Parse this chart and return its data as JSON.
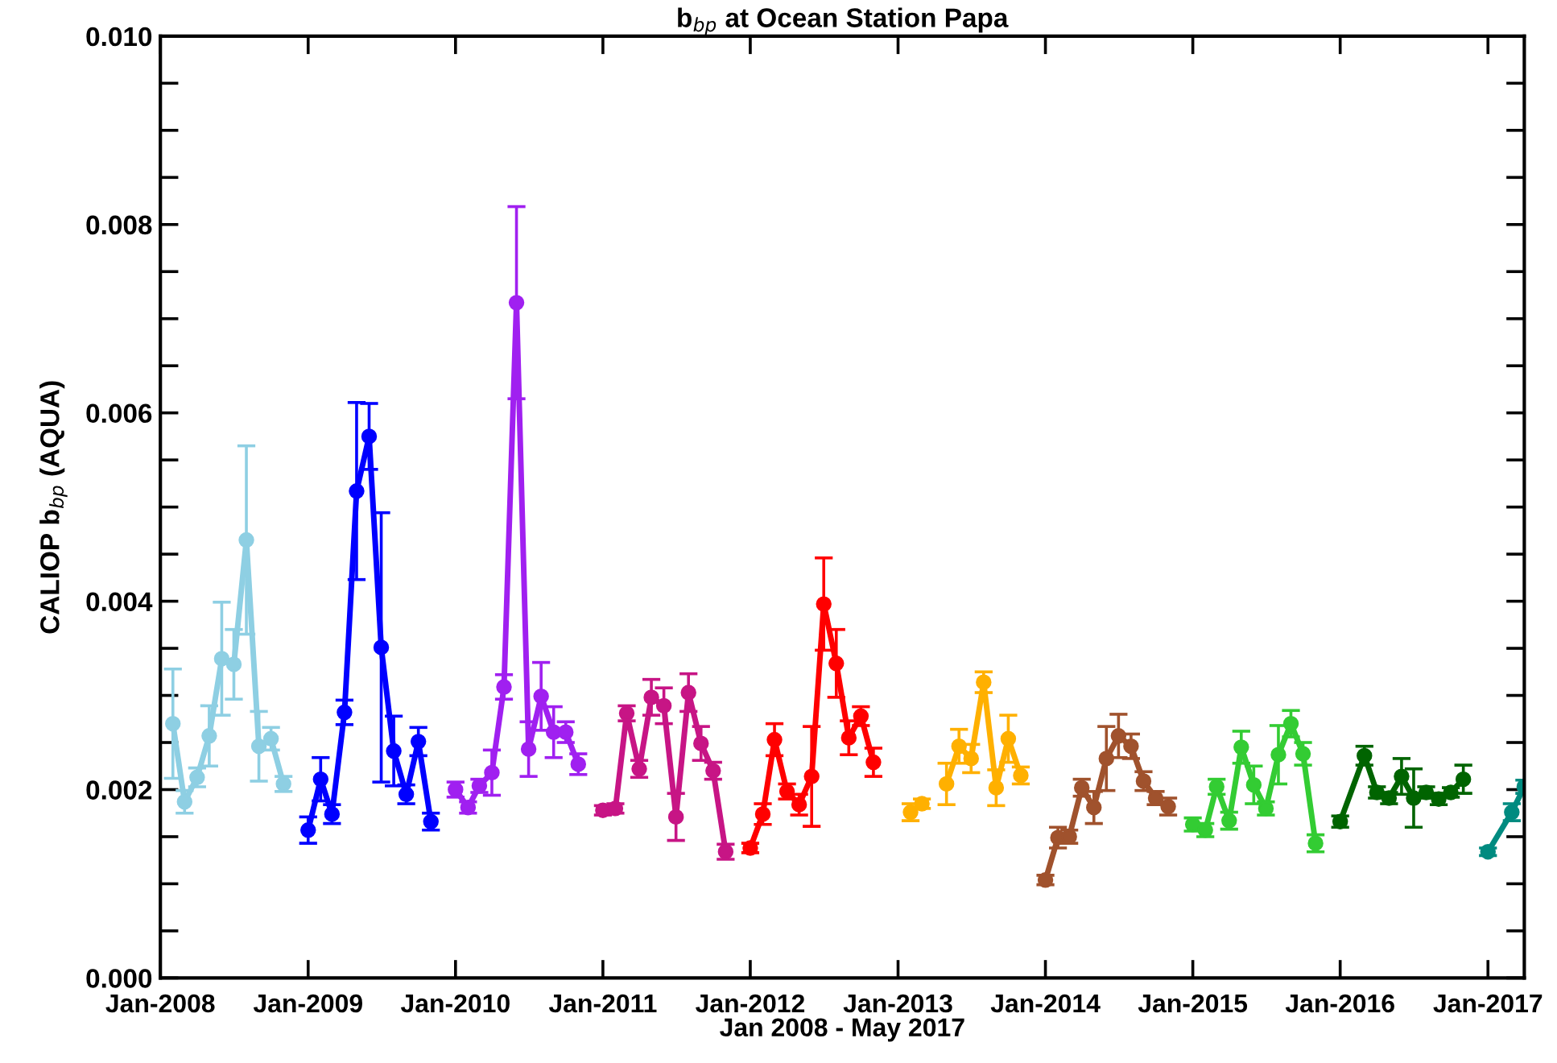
{
  "chart_data": {
    "type": "line",
    "title": "b$_{bp}$ at Ocean Station Papa",
    "xlabel": "Jan 2008 - May 2017",
    "ylabel": "CALIOP b$_{bp}$ (AQUA)",
    "marker": "circle",
    "line_style": "solid",
    "xlim": [
      "2008-01",
      "2017-04"
    ],
    "xticks": [
      {
        "value": "2008-01",
        "label": "Jan-2008"
      },
      {
        "value": "2009-01",
        "label": "Jan-2009"
      },
      {
        "value": "2010-01",
        "label": "Jan-2010"
      },
      {
        "value": "2011-01",
        "label": "Jan-2011"
      },
      {
        "value": "2012-01",
        "label": "Jan-2012"
      },
      {
        "value": "2013-01",
        "label": "Jan-2013"
      },
      {
        "value": "2014-01",
        "label": "Jan-2014"
      },
      {
        "value": "2015-01",
        "label": "Jan-2015"
      },
      {
        "value": "2016-01",
        "label": "Jan-2016"
      },
      {
        "value": "2017-01",
        "label": "Jan-2017"
      }
    ],
    "ylim": [
      0,
      0.01
    ],
    "yticks": [
      {
        "value": 0,
        "label": "0.000"
      },
      {
        "value": 0.0005,
        "label": null
      },
      {
        "value": 0.001,
        "label": null
      },
      {
        "value": 0.0015,
        "label": null
      },
      {
        "value": 0.002,
        "label": "0.002"
      },
      {
        "value": 0.0025,
        "label": null
      },
      {
        "value": 0.003,
        "label": null
      },
      {
        "value": 0.0035,
        "label": null
      },
      {
        "value": 0.004,
        "label": "0.004"
      },
      {
        "value": 0.0045,
        "label": null
      },
      {
        "value": 0.005,
        "label": null
      },
      {
        "value": 0.0055,
        "label": null
      },
      {
        "value": 0.006,
        "label": "0.006"
      },
      {
        "value": 0.0065,
        "label": null
      },
      {
        "value": 0.007,
        "label": null
      },
      {
        "value": 0.0075,
        "label": null
      },
      {
        "value": 0.008,
        "label": "0.008"
      },
      {
        "value": 0.0085,
        "label": null
      },
      {
        "value": 0.009,
        "label": null
      },
      {
        "value": 0.0095,
        "label": null
      },
      {
        "value": 0.01,
        "label": "0.010"
      }
    ],
    "series": [
      {
        "color": "#8ecfe3",
        "x": [
          "2008-02",
          "2008-03",
          "2008-04",
          "2008-05",
          "2008-06",
          "2008-07",
          "2008-08",
          "2008-09",
          "2008-10",
          "2008-11"
        ],
        "values": [
          0.0027,
          0.00187,
          0.00213,
          0.00257,
          0.00339,
          0.00333,
          0.00465,
          0.00246,
          0.00254,
          0.00206
        ],
        "errors": [
          0.00058,
          0.00012,
          0.0001,
          0.00032,
          0.0006,
          0.00037,
          0.001,
          0.00037,
          0.00012,
          8e-05
        ]
      },
      {
        "color": "#0000ff",
        "x": [
          "2009-01",
          "2009-02",
          "2009-03",
          "2009-04",
          "2009-05",
          "2009-06",
          "2009-07",
          "2009-08",
          "2009-09",
          "2009-10",
          "2009-11"
        ],
        "values": [
          0.00157,
          0.00211,
          0.00174,
          0.00282,
          0.00517,
          0.00575,
          0.00351,
          0.00241,
          0.00195,
          0.00251,
          0.00166
        ],
        "errors": [
          0.00014,
          0.00023,
          0.0001,
          0.00013,
          0.00094,
          0.00035,
          0.00143,
          0.00037,
          0.0001,
          0.00015,
          9e-05
        ]
      },
      {
        "color": "#a020f0",
        "x": [
          "2010-01",
          "2010-02",
          "2010-03",
          "2010-04",
          "2010-05",
          "2010-06",
          "2010-07",
          "2010-08",
          "2010-09",
          "2010-10",
          "2010-11"
        ],
        "values": [
          0.002,
          0.00181,
          0.00204,
          0.00218,
          0.00309,
          0.00717,
          0.00243,
          0.00299,
          0.00261,
          0.00261,
          0.00227
        ],
        "errors": [
          8e-05,
          6e-05,
          7e-05,
          0.00024,
          0.00013,
          0.00102,
          0.00029,
          0.00036,
          0.00027,
          0.00011,
          0.00011
        ]
      },
      {
        "color": "#c71585",
        "x": [
          "2011-01",
          "2011-02",
          "2011-03",
          "2011-04",
          "2011-05",
          "2011-06",
          "2011-07",
          "2011-08",
          "2011-09",
          "2011-10",
          "2011-11"
        ],
        "values": [
          0.00178,
          0.0018,
          0.00281,
          0.00222,
          0.00298,
          0.00289,
          0.00171,
          0.00303,
          0.00249,
          0.0022,
          0.00134
        ],
        "errors": [
          5e-05,
          5e-05,
          8e-05,
          9e-05,
          0.00019,
          0.00019,
          0.00025,
          0.0002,
          0.00018,
          9e-05,
          8e-05
        ]
      },
      {
        "color": "#ff0000",
        "x": [
          "2012-01",
          "2012-02",
          "2012-03",
          "2012-04",
          "2012-05",
          "2012-06",
          "2012-07",
          "2012-08",
          "2012-09",
          "2012-10",
          "2012-11"
        ],
        "values": [
          0.00138,
          0.00174,
          0.00253,
          0.00198,
          0.00184,
          0.00214,
          0.00397,
          0.00334,
          0.00255,
          0.00278,
          0.00229
        ],
        "errors": [
          5e-05,
          0.00011,
          0.00017,
          8e-05,
          0.00011,
          0.00053,
          0.00049,
          0.00036,
          0.00018,
          0.0001,
          0.00015
        ]
      },
      {
        "color": "#ffb000",
        "x": [
          "2013-02",
          "2013-03",
          "2013-04",
          "2013-05",
          "2013-06",
          "2013-07",
          "2013-08",
          "2013-09",
          "2013-10",
          "2013-11"
        ],
        "values": [
          0.00176,
          0.00185,
          null,
          0.00206,
          0.00246,
          0.00233,
          0.00314,
          0.00202,
          0.00254,
          0.00215
        ],
        "errors": [
          9e-05,
          5e-05,
          null,
          0.00022,
          0.00018,
          0.00015,
          0.00011,
          0.00019,
          0.00025,
          9e-05
        ]
      },
      {
        "color": "#a0522d",
        "x": [
          "2014-01",
          "2014-02",
          "2014-03",
          "2014-04",
          "2014-05",
          "2014-06",
          "2014-07",
          "2014-08",
          "2014-09",
          "2014-10",
          "2014-11"
        ],
        "values": [
          0.00104,
          0.00149,
          0.0015,
          0.00202,
          0.00181,
          0.00233,
          0.00257,
          0.00246,
          0.00209,
          0.00191,
          0.00182
        ],
        "errors": [
          5e-05,
          0.00011,
          7e-05,
          9e-05,
          0.00017,
          0.00034,
          0.00023,
          0.00013,
          0.0001,
          7e-05,
          9e-05
        ]
      },
      {
        "color": "#33cc33",
        "x": [
          "2015-01",
          "2015-02",
          "2015-03",
          "2015-04",
          "2015-05",
          "2015-06",
          "2015-07",
          "2015-08",
          "2015-09",
          "2015-10",
          "2015-11"
        ],
        "values": [
          0.00163,
          0.00157,
          0.00203,
          0.00167,
          0.00245,
          0.00205,
          0.0018,
          0.00237,
          0.0027,
          0.00238,
          0.00143
        ],
        "errors": [
          7e-05,
          7e-05,
          8e-05,
          9e-05,
          0.00017,
          0.0002,
          7e-05,
          0.00031,
          0.00014,
          0.00012,
          9e-05
        ]
      },
      {
        "color": "#006400",
        "x": [
          "2016-01",
          "2016-03",
          "2016-04",
          "2016-05",
          "2016-06",
          "2016-07",
          "2016-08",
          "2016-09",
          "2016-10",
          "2016-11"
        ],
        "values": [
          0.00166,
          0.00236,
          0.00197,
          0.00191,
          0.00214,
          0.00191,
          0.00197,
          0.0019,
          0.00197,
          0.00211
        ],
        "errors": [
          6e-05,
          0.0001,
          6e-05,
          6e-05,
          0.00019,
          0.00031,
          6e-05,
          6e-05,
          5e-05,
          0.00015
        ]
      },
      {
        "color": "#008b80",
        "x": [
          "2017-01",
          "2017-03",
          "2017-04"
        ],
        "values": [
          0.00134,
          0.00176,
          0.00203
        ],
        "errors": [
          4e-05,
          9e-05,
          7e-05
        ]
      }
    ]
  }
}
